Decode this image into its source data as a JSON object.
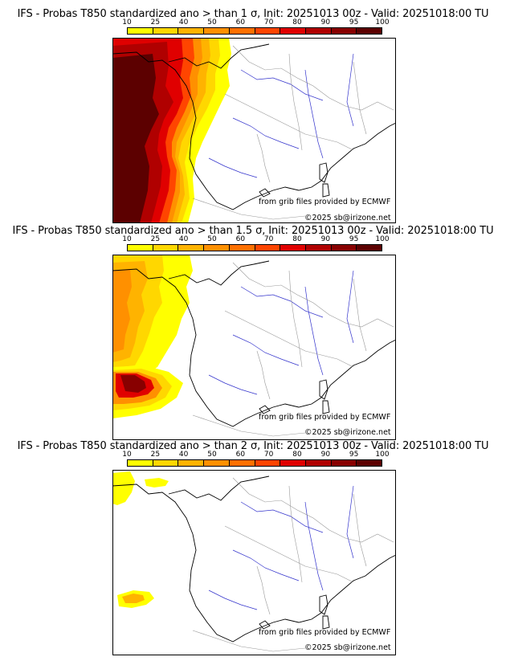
{
  "legend": {
    "ticks": [
      "10",
      "25",
      "40",
      "50",
      "60",
      "70",
      "80",
      "90",
      "95",
      "100"
    ],
    "colors": [
      "#ffff00",
      "#ffd700",
      "#ffb300",
      "#ff9000",
      "#ff7000",
      "#ff4500",
      "#e00000",
      "#b00000",
      "#880000",
      "#5c0000"
    ]
  },
  "panels": [
    {
      "title": "IFS - Probas T850  standardized ano > than 1 σ, Init: 20251013 00z - Valid: 20251018:00 TU",
      "source_credit": "from grib files provided by ECMWF",
      "copyright": "©2025 sb@irizone.net"
    },
    {
      "title": "IFS - Probas T850  standardized ano > than 1.5 σ, Init: 20251013 00z - Valid: 20251018:00 TU",
      "source_credit": "from grib files provided by ECMWF",
      "copyright": "©2025 sb@irizone.net"
    },
    {
      "title": "IFS - Probas T850  standardized ano > than 2 σ, Init: 20251013 00z - Valid: 20251018:00 TU",
      "source_credit": "from grib files provided by ECMWF",
      "copyright": "©2025 sb@irizone.net"
    }
  ]
}
